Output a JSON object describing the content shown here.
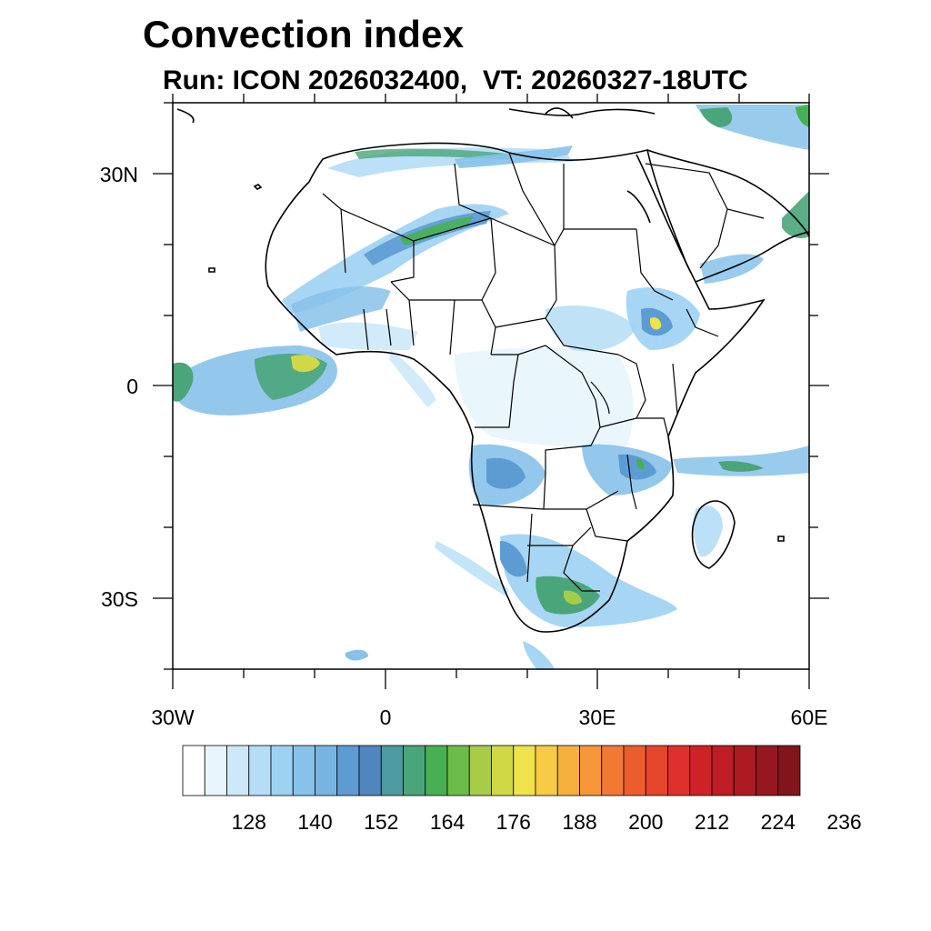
{
  "title": "Convection index",
  "subtitle": "Run: ICON 2026032400,  VT: 20260327-18UTC",
  "axes": {
    "lon_labels": [
      "30W",
      "0",
      "30E",
      "60E"
    ],
    "lat_labels": [
      "30N",
      "0",
      "30S"
    ]
  },
  "colorbar": {
    "labels": [
      "128",
      "140",
      "152",
      "164",
      "176",
      "188",
      "200",
      "212",
      "224",
      "236"
    ],
    "colors": [
      "#ffffff",
      "#e8f5fc",
      "#cde9f9",
      "#b5ddf6",
      "#9dd2f3",
      "#87c2ea",
      "#78b4e2",
      "#5d9bd3",
      "#4f86c0",
      "#4d9aa0",
      "#4aa57a",
      "#47b054",
      "#6cbc4a",
      "#a6cc48",
      "#d0d846",
      "#f0e24a",
      "#f7cb45",
      "#f6b03d",
      "#f59638",
      "#f17933",
      "#ec5d2e",
      "#e5452b",
      "#dd3129",
      "#cf2227",
      "#be1d25",
      "#ac1a22",
      "#971720",
      "#82141c"
    ]
  }
}
